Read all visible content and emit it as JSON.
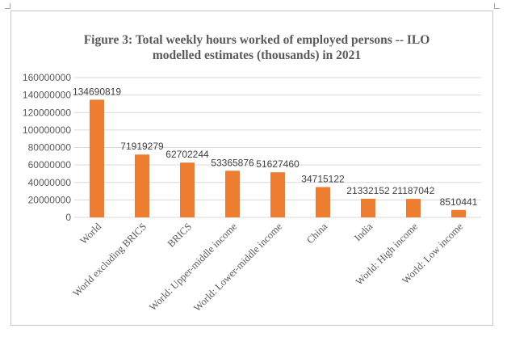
{
  "chart_data": {
    "type": "bar",
    "title": "Figure 3: Total weekly hours worked of employed persons -- ILO modelled estimates (thousands) in 2021",
    "title_lines": [
      "Figure 3: Total weekly hours worked of employed persons -- ILO",
      "modelled estimates (thousands) in 2021"
    ],
    "categories": [
      "World",
      "World excluding BRICS",
      "BRICS",
      "World: Upper-middle income",
      "World: Lower-middle income",
      "China",
      "India",
      "World: High income",
      "World: Low income"
    ],
    "values": [
      134690819,
      71919279,
      62702244,
      53365876,
      51627460,
      34715122,
      21332152,
      21187042,
      8510441
    ],
    "data_labels": [
      "134690819",
      "71919279",
      "62702244",
      "53365876",
      "51627460",
      "34715122",
      "21332152",
      "21187042",
      "8510441"
    ],
    "ylim": [
      0,
      160000000
    ],
    "yticks": [
      "0",
      "20000000",
      "40000000",
      "60000000",
      "80000000",
      "100000000",
      "120000000",
      "140000000",
      "160000000"
    ],
    "ytick_values": [
      0,
      20000000,
      40000000,
      60000000,
      80000000,
      100000000,
      120000000,
      140000000,
      160000000
    ],
    "grid": true,
    "legend": "none",
    "bar_color": "#ED7D31",
    "grid_color": "#d9d9d9",
    "text_color": "#595959"
  }
}
